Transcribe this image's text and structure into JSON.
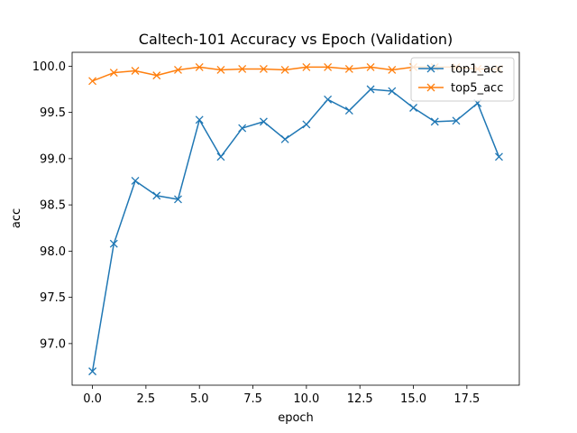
{
  "chart_data": {
    "type": "line",
    "title": "Caltech-101 Accuracy vs Epoch (Validation)",
    "xlabel": "epoch",
    "ylabel": "acc",
    "xlim": [
      -0.95,
      19.95
    ],
    "ylim": [
      96.55,
      100.15
    ],
    "xticks": [
      0,
      2.5,
      5,
      7.5,
      10,
      12.5,
      15,
      17.5
    ],
    "xtick_labels": [
      "0.0",
      "2.5",
      "5.0",
      "7.5",
      "10.0",
      "12.5",
      "15.0",
      "17.5"
    ],
    "yticks": [
      97.0,
      97.5,
      98.0,
      98.5,
      99.0,
      99.5,
      100.0
    ],
    "ytick_labels": [
      "97.0",
      "97.5",
      "98.0",
      "98.5",
      "99.0",
      "99.5",
      "100.0"
    ],
    "grid": false,
    "legend_position": "top-right",
    "x": [
      0,
      1,
      2,
      3,
      4,
      5,
      6,
      7,
      8,
      9,
      10,
      11,
      12,
      13,
      14,
      15,
      16,
      17,
      18,
      19
    ],
    "series": [
      {
        "name": "top1_acc",
        "color": "#1f77b4",
        "marker": "x",
        "values": [
          96.7,
          98.08,
          98.76,
          98.6,
          98.56,
          99.42,
          99.02,
          99.33,
          99.4,
          99.21,
          99.37,
          99.64,
          99.52,
          99.75,
          99.73,
          99.55,
          99.4,
          99.41,
          99.6,
          99.02
        ]
      },
      {
        "name": "top5_acc",
        "color": "#ff7f0e",
        "marker": "x",
        "values": [
          99.84,
          99.93,
          99.95,
          99.9,
          99.96,
          99.99,
          99.96,
          99.97,
          99.97,
          99.96,
          99.99,
          99.99,
          99.97,
          99.99,
          99.96,
          99.99,
          99.99,
          99.99,
          99.97,
          99.97
        ]
      }
    ]
  }
}
